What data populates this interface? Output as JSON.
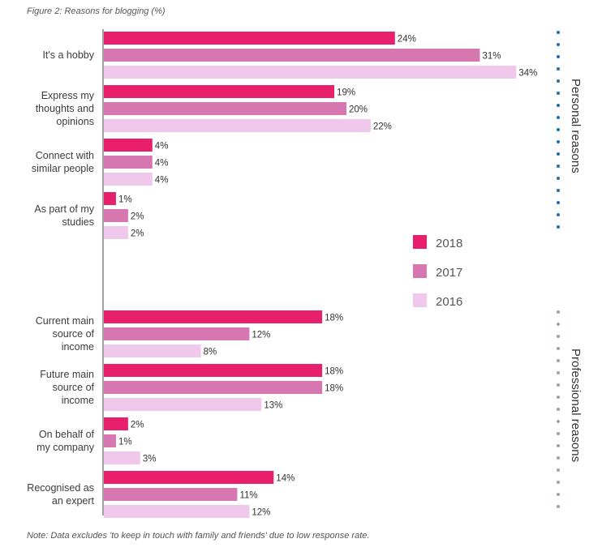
{
  "figure_title": "Figure 2: Reasons for blogging (%)",
  "note": "Note: Data excludes 'to keep in touch with family and friends' due to low response rate.",
  "group_labels": {
    "personal": "Personal reasons",
    "professional": "Professional reasons"
  },
  "colors": {
    "2018": "#e8206b",
    "2017": "#d677b1",
    "2016": "#f0c8ec",
    "personal_dots": "#1f6fb6",
    "professional_dots": "#8fa8b3",
    "axis": "#444444"
  },
  "chart_data": {
    "type": "bar",
    "orientation": "horizontal",
    "title": "Figure 2: Reasons for blogging (%)",
    "unit": "%",
    "xlim": [
      0,
      40
    ],
    "legend_position": "right",
    "categories": [
      "It's a hobby",
      "Express my thoughts and opinions",
      "Connect with similar people",
      "As part of my studies",
      "Current main source of income",
      "Future main source of income",
      "On behalf of my company",
      "Recognised as an expert"
    ],
    "category_lines": [
      [
        "It's a hobby"
      ],
      [
        "Express my",
        "thoughts and",
        "opinions"
      ],
      [
        "Connect with",
        "similar people"
      ],
      [
        "As part of my",
        "studies"
      ],
      [
        "Current main",
        "source of",
        "income"
      ],
      [
        "Future main",
        "source of",
        "income"
      ],
      [
        "On behalf of",
        "my company"
      ],
      [
        "Recognised as",
        "an expert"
      ]
    ],
    "groups": [
      {
        "name": "Personal reasons",
        "categories": [
          "It's a hobby",
          "Express my thoughts and opinions",
          "Connect with similar people",
          "As part of my studies"
        ]
      },
      {
        "name": "Professional reasons",
        "categories": [
          "Current main source of income",
          "Future main source of income",
          "On behalf of my company",
          "Recognised as an expert"
        ]
      }
    ],
    "series": [
      {
        "name": "2018",
        "values": [
          24,
          19,
          4,
          1,
          18,
          18,
          2,
          14
        ]
      },
      {
        "name": "2017",
        "values": [
          31,
          20,
          4,
          2,
          12,
          18,
          1,
          11
        ]
      },
      {
        "name": "2016",
        "values": [
          34,
          22,
          4,
          2,
          8,
          13,
          3,
          12
        ]
      }
    ]
  }
}
